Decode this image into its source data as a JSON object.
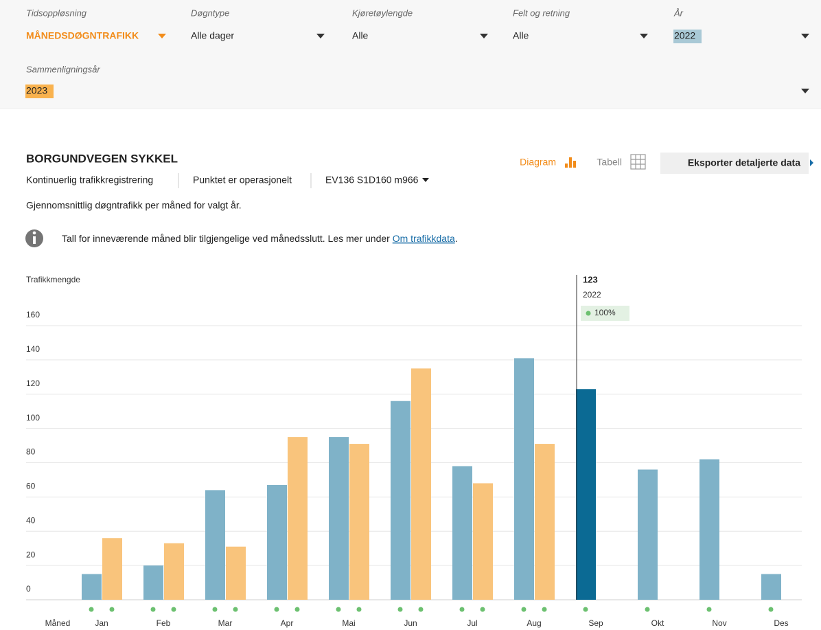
{
  "filters": [
    {
      "label": "Tidsoppløsning",
      "value": "MÅNEDSDØGNTRAFIKK"
    },
    {
      "label": "Døgntype",
      "value": "Alle dager"
    },
    {
      "label": "Kjøretøylengde",
      "value": "Alle"
    },
    {
      "label": "Felt og retning",
      "value": "Alle"
    },
    {
      "label": "År",
      "value": "2022"
    },
    {
      "label": "Sammenligningsår",
      "value": "2023"
    }
  ],
  "header": {
    "title": "BORGUNDVEGEN SYKKEL",
    "meta": [
      "Kontinuerlig trafikkregistrering",
      "Punktet er operasjonelt",
      "EV136 S1D160 m966"
    ],
    "description": "Gjennomsnittlig døgntrafikk per måned for valgt år."
  },
  "info": {
    "text": "Tall for inneværende måned blir tilgjengelige ved månedsslutt. Les mer under",
    "link": "Om trafikkdata",
    "end": "."
  },
  "view": {
    "diagram": "Diagram",
    "table": "Tabell",
    "export": "Eksporter detaljerte data"
  },
  "chart_data": {
    "type": "bar",
    "y_label": "Trafikkmengde",
    "x_label": "Måned",
    "categories": [
      "Jan",
      "Feb",
      "Mar",
      "Apr",
      "Mai",
      "Jun",
      "Jul",
      "Aug",
      "Sep",
      "Okt",
      "Nov",
      "Des"
    ],
    "series": [
      {
        "name": "2022",
        "color": "#7fb2c8",
        "values": [
          15,
          20,
          64,
          67,
          95,
          116,
          78,
          141,
          123,
          76,
          82,
          15
        ]
      },
      {
        "name": "2023",
        "color": "#f9c47c",
        "values": [
          36,
          33,
          31,
          95,
          91,
          135,
          68,
          91,
          null,
          null,
          null,
          null
        ]
      }
    ],
    "ylim": [
      0,
      160
    ],
    "yticks": [
      0,
      20,
      40,
      60,
      80,
      100,
      120,
      140,
      160
    ],
    "grid": true,
    "selected_index": 8,
    "selected_color": "#0b6a94",
    "tooltip_coverage": "100%"
  }
}
